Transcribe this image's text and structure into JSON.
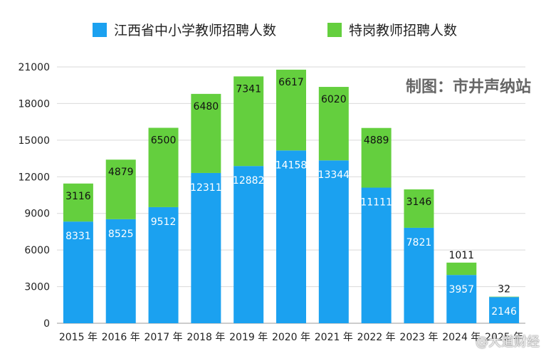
{
  "legend": {
    "blue_label": "江西省中小学教师招聘人数",
    "green_label": "特岗教师招聘人数"
  },
  "credit_text": "制图：市井声纳站",
  "watermark_text": "@大道财经",
  "colors": {
    "blue": "#1BA1F0",
    "green": "#64CF3E",
    "grid": "#d9d9d9"
  },
  "chart_data": {
    "type": "bar",
    "stacked": true,
    "categories": [
      "2015 年",
      "2016 年",
      "2017 年",
      "2018 年",
      "2019 年",
      "2020 年",
      "2021 年",
      "2022 年",
      "2023 年",
      "2024 年",
      "2025 年"
    ],
    "series": [
      {
        "name": "江西省中小学教师招聘人数",
        "values": [
          8331,
          8525,
          9512,
          12311,
          12882,
          14158,
          13344,
          11111,
          7821,
          3957,
          2146
        ]
      },
      {
        "name": "特岗教师招聘人数",
        "values": [
          3116,
          4879,
          6500,
          6480,
          7341,
          6617,
          6020,
          4889,
          3146,
          1011,
          32
        ]
      }
    ],
    "y_ticks": [
      0,
      3000,
      6000,
      9000,
      12000,
      15000,
      18000,
      21000
    ],
    "ylim": [
      0,
      21000
    ],
    "grid": true,
    "legend_position": "top"
  }
}
